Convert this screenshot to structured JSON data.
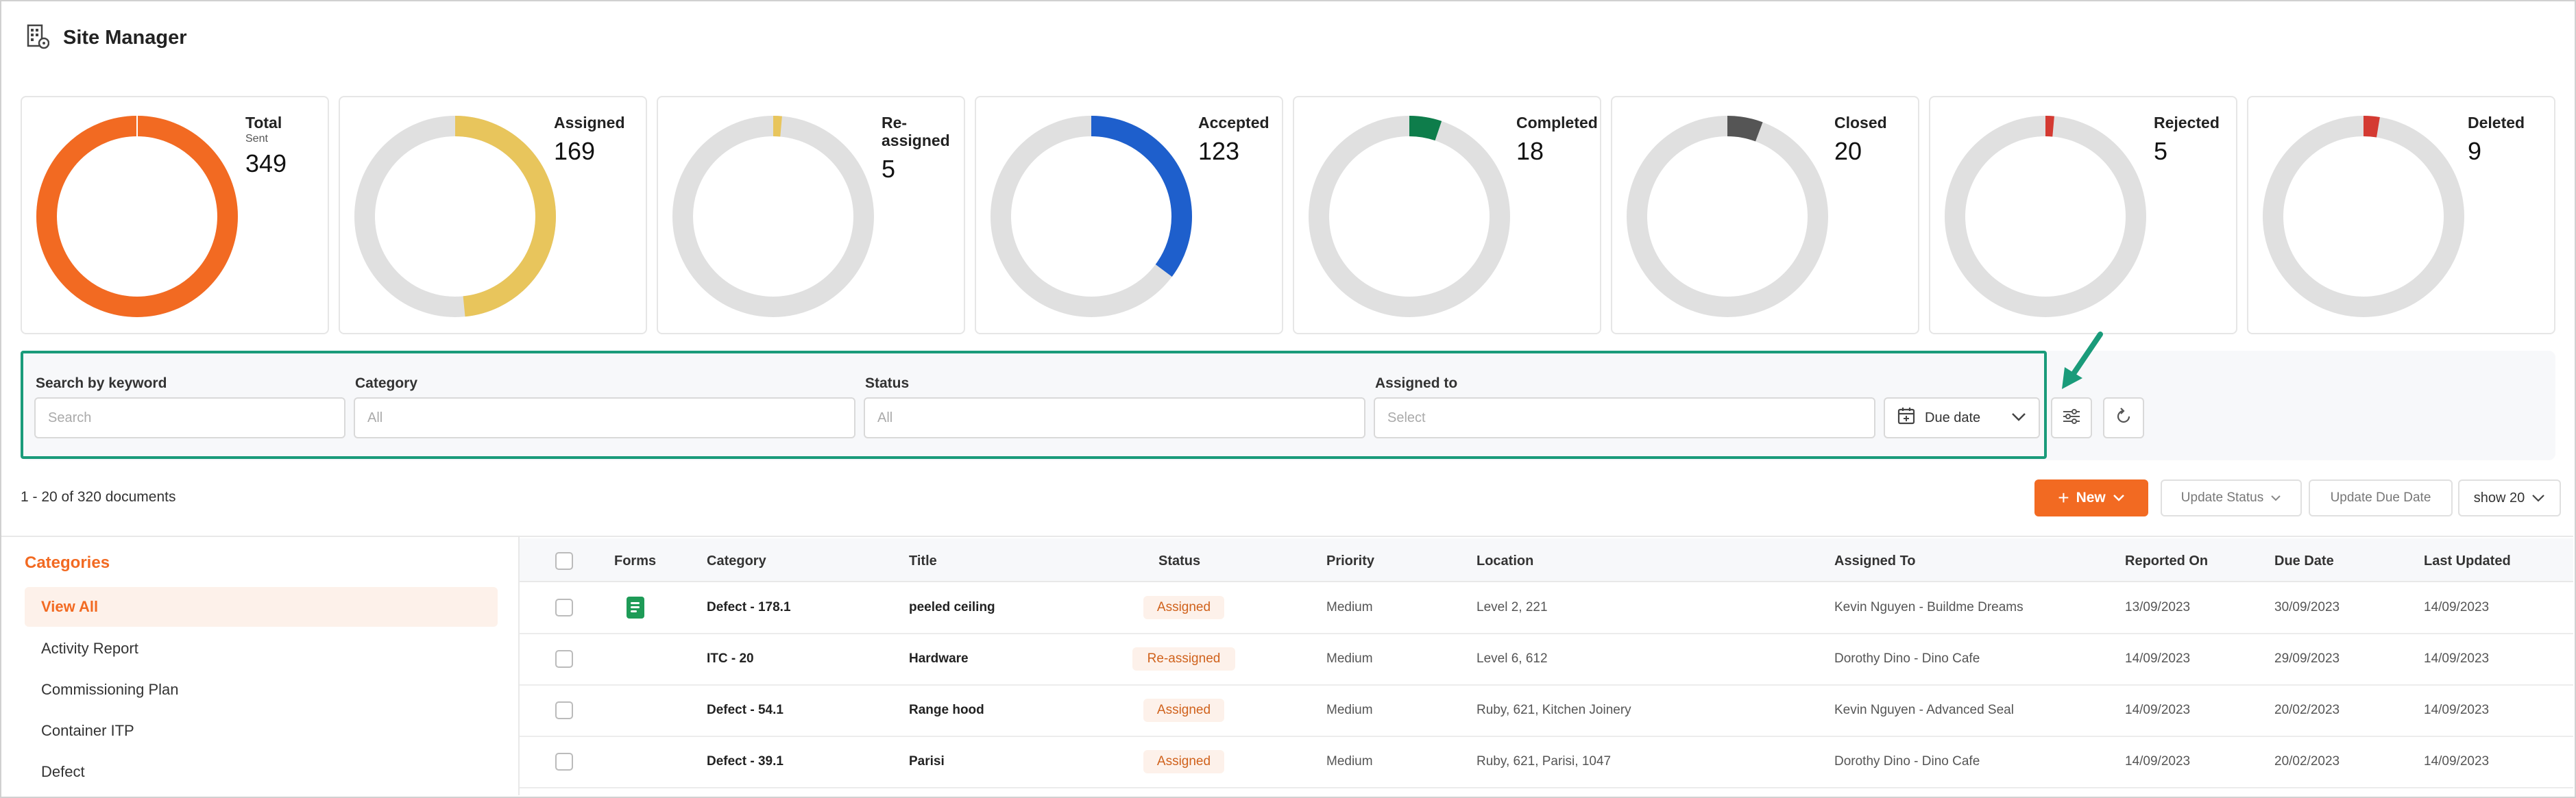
{
  "app": {
    "title": "Site Manager",
    "icon": "building-icon"
  },
  "stats": [
    {
      "label": "Total",
      "sublabel": "Sent",
      "value": "349",
      "fraction": 1.0,
      "color": "#f26a22"
    },
    {
      "label": "Assigned",
      "value": "169",
      "fraction": 0.484,
      "color": "#e8c55c"
    },
    {
      "label": "Re-\nassigned",
      "value": "5",
      "fraction": 0.014,
      "color": "#e8c55c"
    },
    {
      "label": "Accepted",
      "value": "123",
      "fraction": 0.352,
      "color": "#1e5fcc"
    },
    {
      "label": "Completed",
      "value": "18",
      "fraction": 0.052,
      "color": "#0e7d4b"
    },
    {
      "label": "Closed",
      "value": "20",
      "fraction": 0.057,
      "color": "#555555"
    },
    {
      "label": "Rejected",
      "value": "5",
      "fraction": 0.014,
      "color": "#d43a32"
    },
    {
      "label": "Deleted",
      "value": "9",
      "fraction": 0.026,
      "color": "#d43a32"
    }
  ],
  "filters": {
    "keyword_label": "Search by keyword",
    "keyword_placeholder": "Search",
    "category_label": "Category",
    "category_placeholder": "All",
    "status_label": "Status",
    "status_placeholder": "All",
    "assigned_label": "Assigned to",
    "assigned_placeholder": "Select",
    "due_date": "Due date"
  },
  "toolbar": {
    "count": "1 - 20 of 320 documents",
    "new": "New",
    "update_status": "Update Status",
    "update_due_date": "Update Due Date",
    "show": "show 20"
  },
  "categories": {
    "heading": "Categories",
    "items": [
      "View All",
      "Activity Report",
      "Commissioning Plan",
      "Container ITP",
      "Defect"
    ]
  },
  "table": {
    "columns": [
      "Forms",
      "Category",
      "Title",
      "Status",
      "Priority",
      "Location",
      "Assigned To",
      "Reported On",
      "Due Date",
      "Last Updated"
    ],
    "rows": [
      {
        "has_form": true,
        "category": "Defect - 178.1",
        "title": "peeled ceiling",
        "status": "Assigned",
        "priority": "Medium",
        "location": "Level 2, 221",
        "assigned_to": "Kevin Nguyen - Buildme Dreams",
        "reported_on": "13/09/2023",
        "due_date": "30/09/2023",
        "last_updated": "14/09/2023"
      },
      {
        "has_form": false,
        "category": "ITC - 20",
        "title": "Hardware",
        "status": "Re-assigned",
        "priority": "Medium",
        "location": "Level 6, 612",
        "assigned_to": "Dorothy Dino - Dino Cafe",
        "reported_on": "14/09/2023",
        "due_date": "29/09/2023",
        "last_updated": "14/09/2023"
      },
      {
        "has_form": false,
        "category": "Defect - 54.1",
        "title": "Range hood",
        "status": "Assigned",
        "priority": "Medium",
        "location": "Ruby, 621, Kitchen Joinery",
        "assigned_to": "Kevin Nguyen - Advanced Seal",
        "reported_on": "14/09/2023",
        "due_date": "20/02/2023",
        "last_updated": "14/09/2023"
      },
      {
        "has_form": false,
        "category": "Defect - 39.1",
        "title": "Parisi",
        "status": "Assigned",
        "priority": "Medium",
        "location": "Ruby, 621, Parisi, 1047",
        "assigned_to": "Dorothy Dino - Dino Cafe",
        "reported_on": "14/09/2023",
        "due_date": "20/02/2023",
        "last_updated": "14/09/2023"
      }
    ]
  },
  "colors": {
    "accent": "#f26a22",
    "highlight": "#1a9b7a",
    "track": "#e0e0e0"
  }
}
